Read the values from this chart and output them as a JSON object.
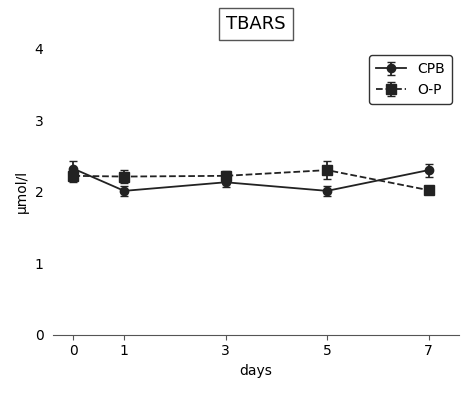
{
  "title": "TBARS",
  "xlabel": "days",
  "ylabel": "μmol/l",
  "x": [
    0,
    1,
    3,
    5,
    7
  ],
  "cpb_y": [
    2.32,
    2.01,
    2.13,
    2.01,
    2.3
  ],
  "cpb_yerr": [
    0.11,
    0.07,
    0.07,
    0.07,
    0.09
  ],
  "op_y": [
    2.22,
    2.21,
    2.22,
    2.3,
    2.02
  ],
  "op_yerr": [
    0.09,
    0.09,
    0.07,
    0.13,
    0.06
  ],
  "ylim": [
    0,
    4
  ],
  "yticks": [
    0,
    1,
    2,
    3,
    4
  ],
  "xlim": [
    -0.4,
    7.6
  ],
  "xticks": [
    0,
    1,
    3,
    5,
    7
  ],
  "cpb_color": "#222222",
  "op_color": "#222222",
  "background_color": "#ffffff",
  "legend_labels": [
    "CPB",
    "O-P"
  ],
  "title_fontsize": 13,
  "axis_fontsize": 10,
  "tick_fontsize": 10,
  "legend_fontsize": 10
}
